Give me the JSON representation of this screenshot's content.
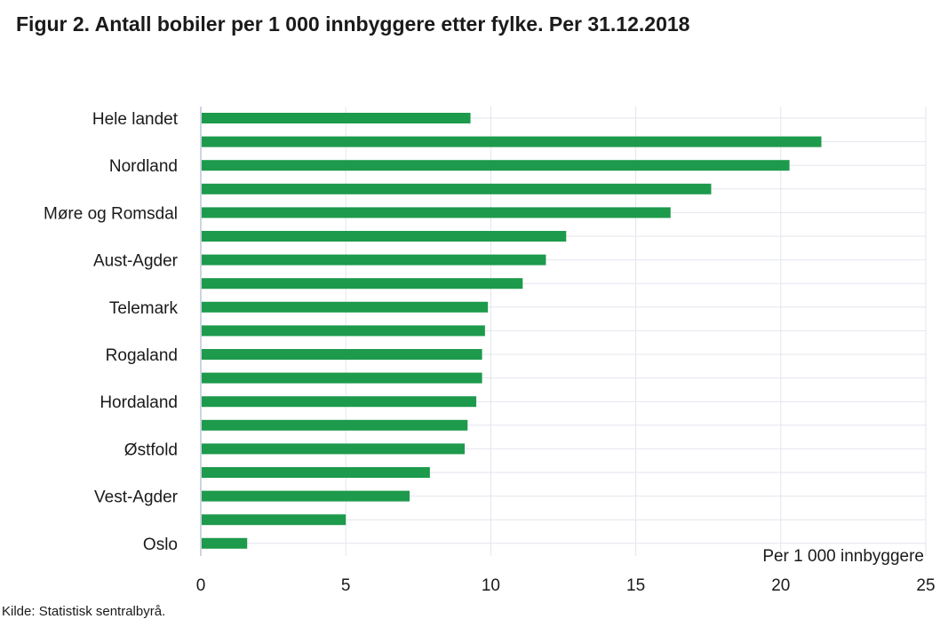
{
  "title": "Figur 2. Antall bobiler per 1 000 innbyggere etter fylke. Per 31.12.2018",
  "source": "Kilde: Statistisk sentralbyrå.",
  "colors": {
    "bar": "#1d9a4c",
    "grid": "#e3e6ee",
    "axis": "#bcc6d6"
  },
  "chart_data": {
    "type": "bar",
    "orientation": "horizontal",
    "categories": [
      "Hele landet",
      "",
      "Nordland",
      "",
      "Møre og Romsdal",
      "",
      "Aust-Agder",
      "",
      "Telemark",
      "",
      "Rogaland",
      "",
      "Hordaland",
      "",
      "Østfold",
      "",
      "Vest-Agder",
      "",
      "Oslo"
    ],
    "values": [
      9.3,
      21.4,
      20.3,
      17.6,
      16.2,
      12.6,
      11.9,
      11.1,
      9.9,
      9.8,
      9.7,
      9.7,
      9.5,
      9.2,
      9.1,
      7.9,
      7.2,
      5.0,
      1.6
    ],
    "xlabel": "Per 1 000 innbyggere",
    "xlim": [
      0,
      25
    ],
    "xticks": [
      0,
      5,
      10,
      15,
      20,
      25
    ],
    "grid": true,
    "legend": "none"
  }
}
